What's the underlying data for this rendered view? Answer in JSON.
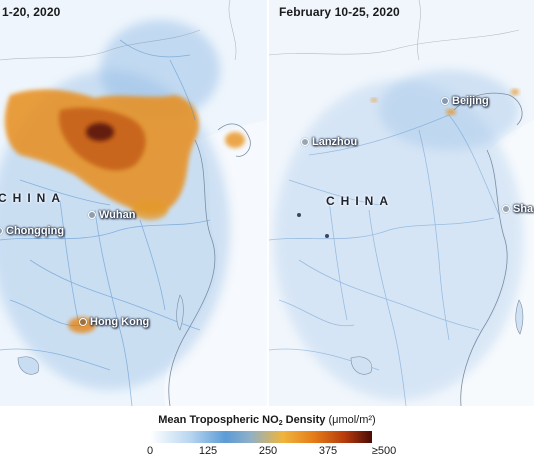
{
  "panels": {
    "left": {
      "title": "1-20, 2020",
      "country_label": "CHINA",
      "cities": [
        "Chongqing",
        "Wuhan",
        "Hong Kong"
      ]
    },
    "right": {
      "title": "February 10-25, 2020",
      "country_label": "CHINA",
      "cities": [
        "Beijing",
        "Lanzhou",
        "Sha"
      ]
    }
  },
  "legend": {
    "title_bold": "Mean Tropospheric NO",
    "title_sub": "2",
    "title_bold_after": " Density",
    "unit": "(μmol/m²)",
    "ticks": [
      "0",
      "125",
      "250",
      "375",
      "≥500"
    ],
    "colors": [
      "#ffffff",
      "#b9d6f0",
      "#5b9bd5",
      "#f0b43c",
      "#e47b18",
      "#b53a0c",
      "#4a0b06"
    ]
  },
  "colors": {
    "land": "#e9f2fb",
    "water": "#f4f8fc",
    "road_network": "#5b95cf",
    "high_no2": "#e4861a",
    "very_high_no2": "#6b1a0a"
  }
}
